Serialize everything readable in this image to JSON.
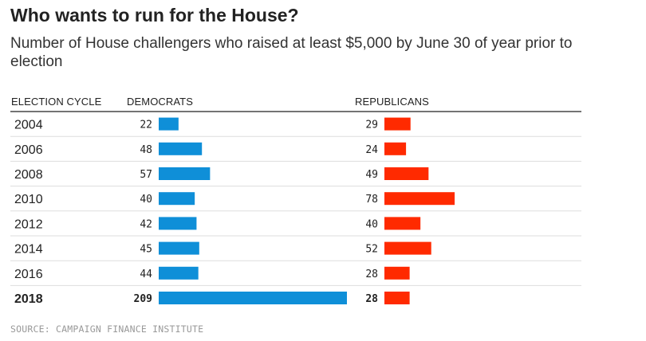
{
  "chart_data": {
    "type": "bar",
    "title": "Who wants to run for the House?",
    "subtitle": "Number of House challengers who raised at least $5,000 by June 30 of year prior to election",
    "column_headers": {
      "cycle": "ELECTION CYCLE",
      "democrats": "DEMOCRATS",
      "republicans": "REPUBLICANS"
    },
    "categories": [
      "2004",
      "2006",
      "2008",
      "2010",
      "2012",
      "2014",
      "2016",
      "2018"
    ],
    "highlight_category": "2018",
    "series": [
      {
        "name": "DEMOCRATS",
        "values": [
          22,
          48,
          57,
          40,
          42,
          45,
          44,
          209
        ],
        "color": "#0f8fd8"
      },
      {
        "name": "REPUBLICANS",
        "values": [
          29,
          24,
          49,
          78,
          40,
          52,
          28,
          28
        ],
        "color": "#ff2a00"
      }
    ],
    "grid_color": "#dddddd",
    "header_rule_color": "#222222",
    "source": "SOURCE: CAMPAIGN FINANCE INSTITUTE"
  }
}
